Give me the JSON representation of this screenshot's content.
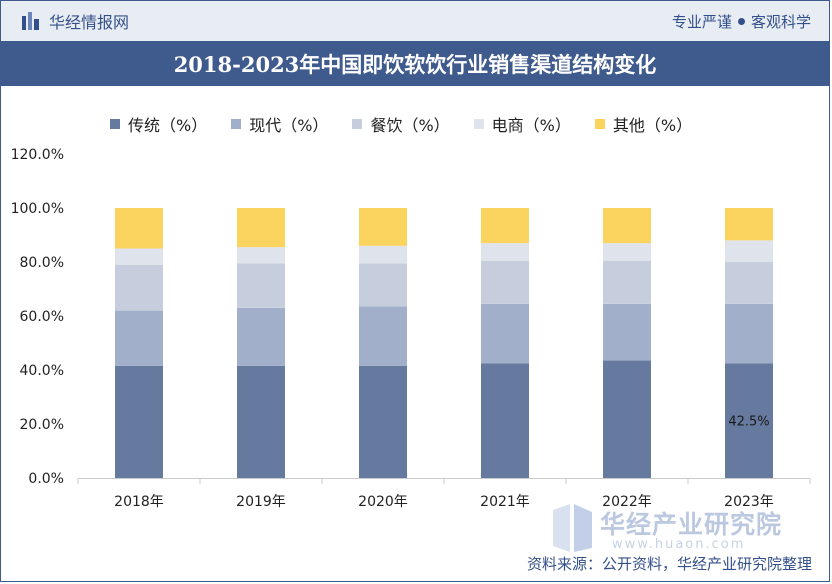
{
  "header": {
    "brand": "华经情报网",
    "slogan_left": "专业严谨",
    "slogan_right": "客观科学"
  },
  "title": "2018-2023年中国即饮软饮行业销售渠道结构变化",
  "footer": {
    "source": "资料来源：公开资料，华经产业研究院整理"
  },
  "watermark": {
    "text": "华经产业研究院",
    "url": "www.huaon.com"
  },
  "chart_data": {
    "type": "bar",
    "stacked": true,
    "categories": [
      "2018年",
      "2019年",
      "2020年",
      "2021年",
      "2022年",
      "2023年"
    ],
    "series": [
      {
        "name": "传统（%）",
        "color": "#66799e",
        "values": [
          41.5,
          41.5,
          41.5,
          42.5,
          43.5,
          42.5
        ]
      },
      {
        "name": "现代（%）",
        "color": "#a1afca",
        "values": [
          20.5,
          21.5,
          22.0,
          22.0,
          21.0,
          22.0
        ]
      },
      {
        "name": "餐饮（%）",
        "color": "#c6cedd",
        "values": [
          17.0,
          16.5,
          16.0,
          16.0,
          16.0,
          15.5
        ]
      },
      {
        "name": "电商（%）",
        "color": "#dfe4ec",
        "values": [
          6.0,
          6.0,
          6.5,
          6.5,
          6.5,
          8.0
        ]
      },
      {
        "name": "其他（%）",
        "color": "#fbd460",
        "values": [
          15.0,
          14.5,
          14.0,
          13.0,
          13.0,
          12.0
        ]
      }
    ],
    "ylim": [
      0,
      120
    ],
    "yticks": [
      "0.0%",
      "20.0%",
      "40.0%",
      "60.0%",
      "80.0%",
      "100.0%",
      "120.0%"
    ],
    "annotations": [
      {
        "category": "2023年",
        "series": "传统（%）",
        "label": "42.5%"
      }
    ],
    "legend_position": "top-left",
    "grid": false
  }
}
